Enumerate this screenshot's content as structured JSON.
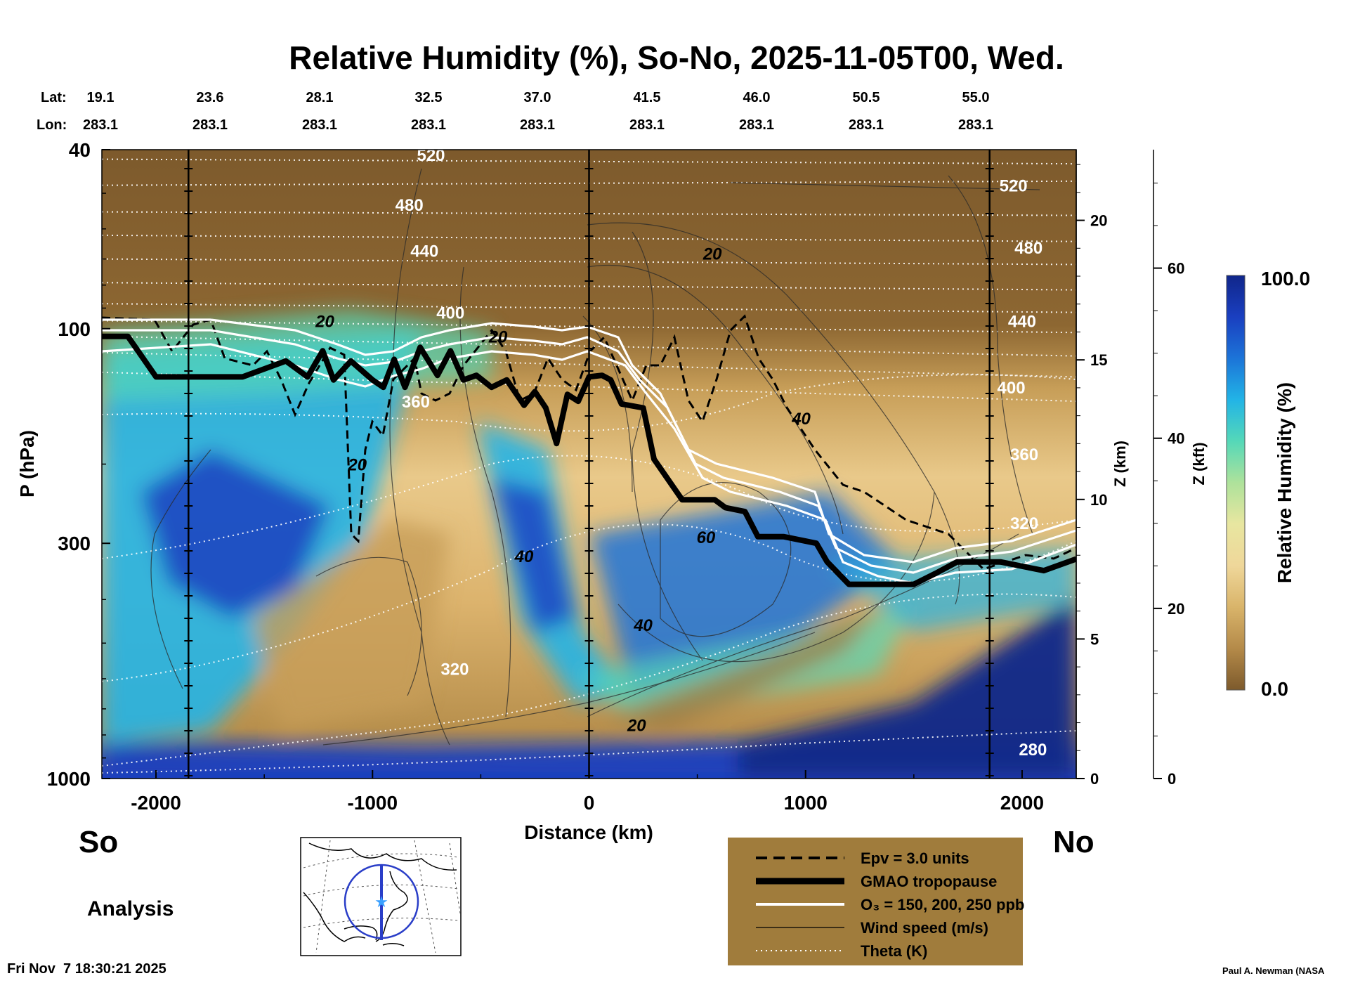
{
  "title": "Relative Humidity (%), So-No, 2025-11-05T00, Wed.",
  "header": {
    "lat_label": "Lat:",
    "lon_label": "Lon:",
    "lat_values": [
      "19.1",
      "23.6",
      "28.1",
      "32.5",
      "37.0",
      "41.5",
      "46.0",
      "50.5",
      "55.0"
    ],
    "lon_values": [
      "283.1",
      "283.1",
      "283.1",
      "283.1",
      "283.1",
      "283.1",
      "283.1",
      "283.1",
      "283.1"
    ]
  },
  "side_labels": {
    "left": "So",
    "right": "No"
  },
  "analysis_label": "Analysis",
  "timestamp": "Fri Nov  7 18:30:21 2025",
  "credit": "Paul A. Newman (NASA",
  "colorbar": {
    "title": "Relative Humidity (%)",
    "max_label": "100.0",
    "min_label": "0.0",
    "colors": [
      "#7d5a2c",
      "#b48a49",
      "#d9b46a",
      "#efd79a",
      "#e8e6a0",
      "#aee29b",
      "#55d8b8",
      "#22b4e6",
      "#1c74d8",
      "#1a3fc0",
      "#10268a"
    ]
  },
  "legend": {
    "background": "#a07c3c",
    "items": [
      {
        "style": "dashed",
        "label": "Epv = 3.0 units"
      },
      {
        "style": "thick",
        "label": "GMAO tropopause"
      },
      {
        "style": "white",
        "label": "O₃ = 150, 200, 250 ppb"
      },
      {
        "style": "thin",
        "label": "Wind speed (m/s)"
      },
      {
        "style": "dotted",
        "label": "Theta (K)"
      }
    ]
  },
  "chart_data": {
    "type": "heatmap",
    "title": "Relative Humidity (%), So-No, 2025-11-05T00, Wed.",
    "xlabel": "Distance (km)",
    "ylabel": "P (hPa)",
    "xlim": [
      -2250,
      2250
    ],
    "ylim": [
      1000,
      40
    ],
    "y_scale": "log",
    "x_ticks": [
      -2000,
      -1000,
      0,
      1000,
      2000
    ],
    "y_ticks": [
      40,
      100,
      300,
      1000
    ],
    "right_axis_1": {
      "label": "Z (km)",
      "ticks": [
        0,
        5,
        10,
        15,
        20
      ]
    },
    "right_axis_2": {
      "label": "Z (kft)",
      "ticks": [
        0,
        20,
        40,
        60
      ]
    },
    "vertical_markers_km": [
      -1850,
      0,
      1850
    ],
    "theta_labels": [
      {
        "label": "520",
        "x": -730,
        "p": 41
      },
      {
        "label": "480",
        "x": -830,
        "p": 53
      },
      {
        "label": "440",
        "x": -760,
        "p": 67
      },
      {
        "label": "400",
        "x": -640,
        "p": 92
      },
      {
        "label": "360",
        "x": -800,
        "p": 145
      },
      {
        "label": "320",
        "x": -620,
        "p": 570
      },
      {
        "label": "520",
        "x": 1960,
        "p": 48
      },
      {
        "label": "480",
        "x": 2030,
        "p": 66
      },
      {
        "label": "440",
        "x": 2000,
        "p": 96
      },
      {
        "label": "400",
        "x": 1950,
        "p": 135
      },
      {
        "label": "360",
        "x": 2010,
        "p": 190
      },
      {
        "label": "320",
        "x": 2010,
        "p": 270
      },
      {
        "label": "280",
        "x": 2050,
        "p": 860
      }
    ],
    "wind_labels": [
      {
        "label": "20",
        "x": -1220,
        "p": 96
      },
      {
        "label": "20",
        "x": -420,
        "p": 104
      },
      {
        "label": "20",
        "x": -1070,
        "p": 200
      },
      {
        "label": "20",
        "x": 570,
        "p": 68
      },
      {
        "label": "40",
        "x": 980,
        "p": 158
      },
      {
        "label": "60",
        "x": 540,
        "p": 290
      },
      {
        "label": "40",
        "x": -300,
        "p": 320
      },
      {
        "label": "40",
        "x": 250,
        "p": 455
      },
      {
        "label": "20",
        "x": 220,
        "p": 760
      }
    ],
    "tropopause": {
      "x": [
        -2250,
        -2130,
        -2000,
        -1600,
        -1400,
        -1300,
        -1230,
        -1180,
        -1100,
        -1000,
        -950,
        -900,
        -850,
        -780,
        -700,
        -640,
        -580,
        -520,
        -450,
        -380,
        -300,
        -250,
        -200,
        -150,
        -100,
        -50,
        0,
        60,
        100,
        150,
        250,
        300,
        430,
        580,
        630,
        720,
        780,
        850,
        900,
        1050,
        1100,
        1200,
        1500,
        1600,
        1700,
        1800,
        1900,
        2100,
        2250
      ],
      "p": [
        104,
        104,
        128,
        128,
        118,
        128,
        112,
        130,
        118,
        130,
        135,
        117,
        135,
        110,
        127,
        112,
        130,
        127,
        135,
        130,
        148,
        138,
        150,
        180,
        140,
        145,
        128,
        127,
        130,
        147,
        150,
        195,
        240,
        240,
        250,
        255,
        290,
        290,
        290,
        300,
        330,
        370,
        370,
        350,
        330,
        330,
        330,
        345,
        325
      ]
    },
    "ozone_contours_ppb": [
      150,
      200,
      250
    ],
    "epv_contour": 3.0
  }
}
